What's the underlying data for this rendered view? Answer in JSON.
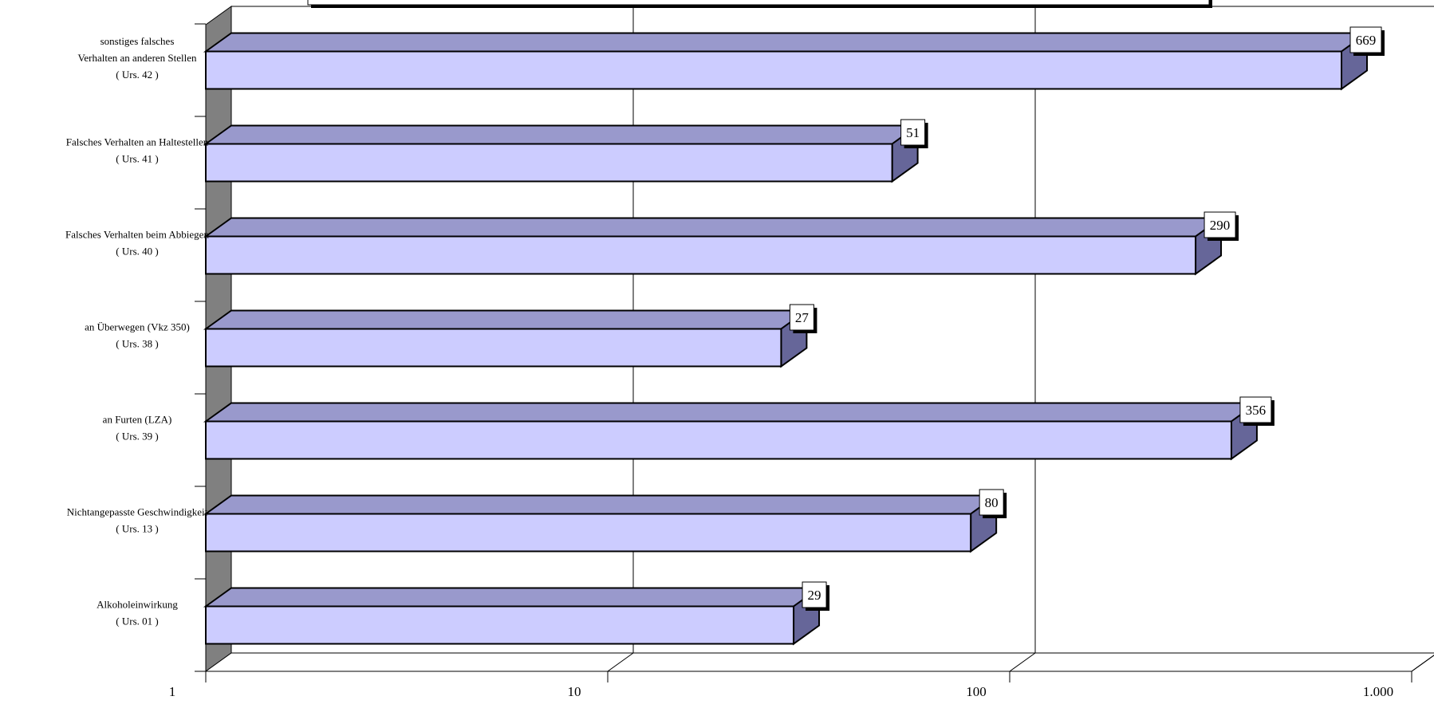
{
  "chart_data": {
    "type": "bar",
    "orientation": "horizontal",
    "style": "3d",
    "x_scale": "log",
    "xlim": [
      1,
      1000
    ],
    "x_ticks": [
      1,
      10,
      100,
      1000
    ],
    "x_tick_labels": [
      "1",
      "10",
      "100",
      "1.000"
    ],
    "categories": [
      {
        "lines": [
          "Alkoholeinwirkung",
          "( Urs. 01 )"
        ]
      },
      {
        "lines": [
          "Nichtangepasste Geschwindigkeit",
          "( Urs. 13 )"
        ]
      },
      {
        "lines": [
          "an Furten (LZA)",
          "( Urs. 39 )"
        ]
      },
      {
        "lines": [
          "an Überwegen (Vkz 350)",
          "( Urs. 38 )"
        ]
      },
      {
        "lines": [
          "Falsches Verhalten beim Abbiegen",
          "( Urs. 40 )"
        ]
      },
      {
        "lines": [
          "Falsches Verhalten an Haltestellen",
          "( Urs. 41 )"
        ]
      },
      {
        "lines": [
          "sonstiges  falsches",
          "Verhalten an anderen Stellen",
          "( Urs. 42 )"
        ]
      }
    ],
    "values": [
      29,
      80,
      356,
      27,
      290,
      51,
      669
    ],
    "data_labels": [
      "29",
      "80",
      "356",
      "27",
      "290",
      "51",
      "669"
    ],
    "grid": true,
    "colors": {
      "bar_front": "#ccccff",
      "bar_top": "#9999cc",
      "bar_side": "#666699",
      "wall": "#808080",
      "outline": "#000000"
    }
  }
}
